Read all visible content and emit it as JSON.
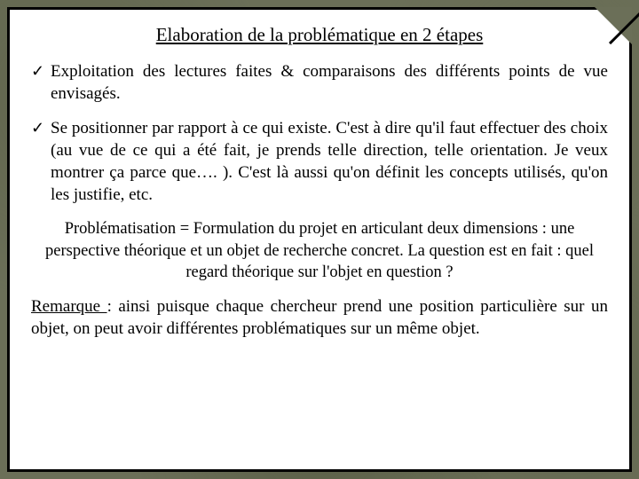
{
  "title": "Elaboration de la problématique en 2 étapes",
  "bullets": [
    "Exploitation des lectures faites & comparaisons des différents points de vue  envisagés.",
    "Se positionner par rapport à ce qui existe. C'est à dire qu'il faut effectuer des choix (au vue de ce qui a été fait, je prends telle direction, telle orientation. Je veux montrer ça parce que…. ). C'est là aussi qu'on définit les concepts utilisés, qu'on les justifie, etc."
  ],
  "summary": "Problématisation = Formulation du projet en articulant deux dimensions : une perspective théorique et un objet de recherche concret. La question est en fait : quel regard théorique sur l'objet en question ?",
  "remark_label": "Remarque ",
  "remark_text": ": ainsi puisque chaque chercheur prend une position particulière sur un objet, on peut avoir différentes problématiques sur un même objet.",
  "colors": {
    "background": "#6b6f58",
    "card_bg": "#ffffff",
    "border": "#000000",
    "text": "#000000"
  },
  "typography": {
    "family": "Times New Roman",
    "title_size_pt": 16,
    "body_size_pt": 14
  }
}
